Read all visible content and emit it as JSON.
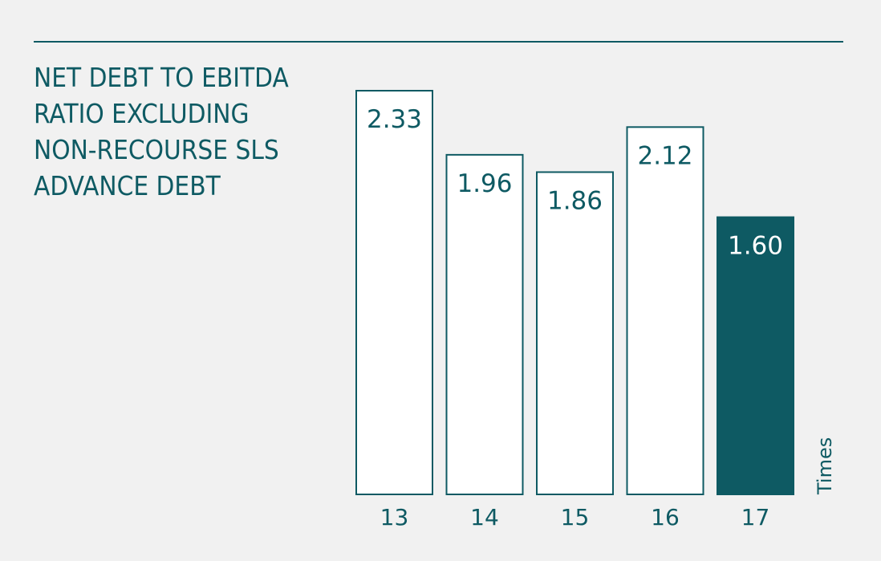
{
  "chart_data": {
    "type": "bar",
    "title_lines": [
      "NET DEBT TO EBITDA",
      "RATIO EXCLUDING",
      "NON-RECOURSE SLS",
      "ADVANCE DEBT"
    ],
    "categories": [
      "13",
      "14",
      "15",
      "16",
      "17"
    ],
    "values": [
      2.33,
      1.96,
      1.86,
      2.12,
      1.6
    ],
    "value_labels": [
      "2.33",
      "1.96",
      "1.86",
      "2.12",
      "1.60"
    ],
    "highlight_index": 4,
    "unit_label": "Times",
    "ylim": [
      0,
      2.5
    ],
    "grid": false,
    "legend": "none",
    "colors": {
      "accent": "#0e5a63",
      "bar_fill": "#ffffff",
      "highlight_fill": "#0e5a63",
      "highlight_text": "#ffffff",
      "background": "#f1f1f1"
    }
  }
}
